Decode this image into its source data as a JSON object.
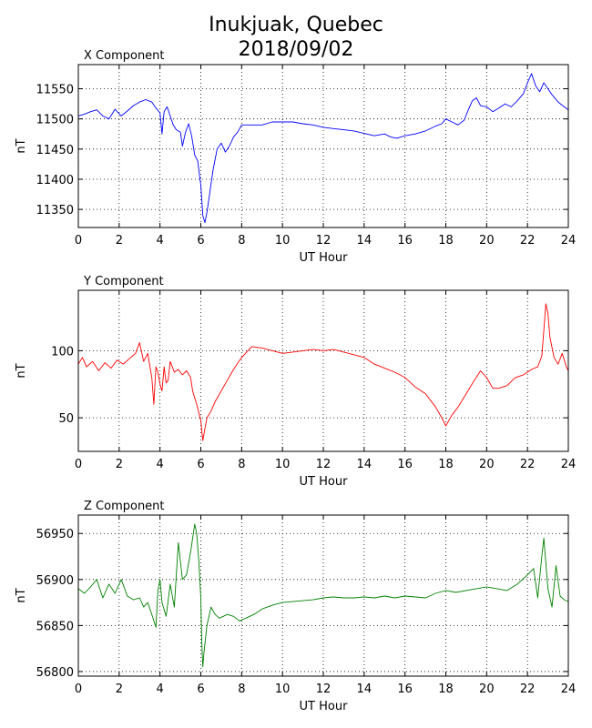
{
  "figure": {
    "title_line1": "Inukjuak, Quebec",
    "title_line2": "2018/09/02"
  },
  "chart_data": [
    {
      "type": "line",
      "title": "X Component",
      "xlabel": "UT Hour",
      "ylabel": "nT",
      "xlim": [
        0,
        24
      ],
      "ylim": [
        11320,
        11590
      ],
      "xticks": [
        0,
        2,
        4,
        6,
        8,
        10,
        12,
        14,
        16,
        18,
        20,
        22,
        24
      ],
      "yticks": [
        11350,
        11400,
        11450,
        11500,
        11550
      ],
      "grid": true,
      "color": "#0000ff",
      "series": [
        {
          "x": [
            0,
            0.3,
            0.6,
            0.9,
            1.2,
            1.5,
            1.8,
            2.1,
            2.4,
            2.7,
            3.0,
            3.3,
            3.6,
            3.8,
            4.0,
            4.1,
            4.2,
            4.35,
            4.5,
            4.65,
            4.8,
            5.0,
            5.1,
            5.25,
            5.4,
            5.55,
            5.7,
            5.85,
            6.0,
            6.1,
            6.2,
            6.3,
            6.45,
            6.6,
            6.8,
            7.0,
            7.2,
            7.4,
            7.6,
            7.8,
            8.0,
            8.5,
            9.0,
            9.5,
            10.0,
            10.5,
            11.0,
            11.5,
            12.0,
            12.5,
            13.0,
            13.5,
            14.0,
            14.5,
            15.0,
            15.3,
            15.6,
            16.0,
            16.5,
            17.0,
            17.5,
            17.8,
            18.0,
            18.3,
            18.6,
            18.9,
            19.1,
            19.3,
            19.5,
            19.7,
            20.0,
            20.3,
            20.6,
            20.9,
            21.2,
            21.5,
            21.8,
            22.0,
            22.2,
            22.4,
            22.6,
            22.8,
            23.0,
            23.2,
            23.5,
            23.8,
            24.0
          ],
          "y": [
            11505,
            11508,
            11512,
            11515,
            11505,
            11500,
            11516,
            11505,
            11513,
            11522,
            11528,
            11532,
            11528,
            11518,
            11510,
            11475,
            11512,
            11520,
            11505,
            11490,
            11482,
            11478,
            11455,
            11478,
            11492,
            11472,
            11440,
            11430,
            11390,
            11340,
            11328,
            11345,
            11380,
            11415,
            11450,
            11460,
            11445,
            11455,
            11470,
            11478,
            11490,
            11490,
            11490,
            11495,
            11495,
            11495,
            11492,
            11490,
            11486,
            11484,
            11482,
            11480,
            11476,
            11472,
            11475,
            11470,
            11468,
            11472,
            11475,
            11480,
            11488,
            11492,
            11500,
            11495,
            11490,
            11498,
            11515,
            11530,
            11535,
            11522,
            11520,
            11512,
            11518,
            11525,
            11520,
            11530,
            11542,
            11560,
            11575,
            11555,
            11545,
            11560,
            11550,
            11540,
            11528,
            11520,
            11515
          ]
        }
      ]
    },
    {
      "type": "line",
      "title": "Y Component",
      "xlabel": "UT Hour",
      "ylabel": "nT",
      "xlim": [
        0,
        24
      ],
      "ylim": [
        25,
        145
      ],
      "xticks": [
        0,
        2,
        4,
        6,
        8,
        10,
        12,
        14,
        16,
        18,
        20,
        22,
        24
      ],
      "yticks": [
        50,
        100
      ],
      "grid": true,
      "color": "#ff0000",
      "series": [
        {
          "x": [
            0,
            0.2,
            0.4,
            0.7,
            1.0,
            1.3,
            1.6,
            1.9,
            2.2,
            2.5,
            2.8,
            3.0,
            3.2,
            3.4,
            3.6,
            3.7,
            3.8,
            3.9,
            4.0,
            4.1,
            4.2,
            4.3,
            4.4,
            4.5,
            4.7,
            4.9,
            5.1,
            5.3,
            5.5,
            5.6,
            5.8,
            6.0,
            6.05,
            6.1,
            6.2,
            6.3,
            6.5,
            6.7,
            7.0,
            7.3,
            7.6,
            8.0,
            8.5,
            9.0,
            9.5,
            10.0,
            10.5,
            11.0,
            11.5,
            12.0,
            12.5,
            13.0,
            13.5,
            14.0,
            14.5,
            15.0,
            15.5,
            16.0,
            16.5,
            17.0,
            17.5,
            17.8,
            18.0,
            18.3,
            18.6,
            19.0,
            19.4,
            19.7,
            20.0,
            20.3,
            20.6,
            21.0,
            21.4,
            21.8,
            22.2,
            22.5,
            22.7,
            22.8,
            22.9,
            23.0,
            23.1,
            23.3,
            23.5,
            23.7,
            23.9,
            24.0
          ],
          "y": [
            90,
            95,
            88,
            92,
            85,
            91,
            87,
            93,
            90,
            94,
            98,
            106,
            92,
            98,
            80,
            60,
            88,
            84,
            75,
            70,
            88,
            76,
            78,
            92,
            84,
            86,
            82,
            85,
            80,
            70,
            60,
            48,
            40,
            33,
            42,
            50,
            55,
            62,
            70,
            78,
            86,
            95,
            103,
            102,
            100,
            98,
            99,
            100,
            101,
            100,
            101,
            99,
            97,
            95,
            90,
            87,
            84,
            80,
            73,
            68,
            58,
            50,
            44,
            52,
            58,
            68,
            78,
            85,
            80,
            72,
            72,
            74,
            80,
            82,
            86,
            88,
            96,
            115,
            135,
            128,
            110,
            95,
            90,
            98,
            88,
            85
          ]
        }
      ]
    },
    {
      "type": "line",
      "title": "Z Component",
      "xlabel": "UT Hour",
      "ylabel": "nT",
      "xlim": [
        0,
        24
      ],
      "ylim": [
        56795,
        56970
      ],
      "xticks": [
        0,
        2,
        4,
        6,
        8,
        10,
        12,
        14,
        16,
        18,
        20,
        22,
        24
      ],
      "yticks": [
        56800,
        56850,
        56900,
        56950
      ],
      "grid": true,
      "color": "#008000",
      "series": [
        {
          "x": [
            0,
            0.3,
            0.6,
            0.9,
            1.2,
            1.5,
            1.8,
            2.1,
            2.4,
            2.7,
            3.0,
            3.2,
            3.4,
            3.6,
            3.8,
            3.9,
            4.0,
            4.1,
            4.3,
            4.5,
            4.7,
            4.8,
            4.9,
            5.0,
            5.1,
            5.3,
            5.5,
            5.7,
            5.8,
            5.9,
            6.0,
            6.05,
            6.1,
            6.15,
            6.2,
            6.3,
            6.5,
            6.7,
            6.9,
            7.1,
            7.3,
            7.6,
            7.9,
            8.2,
            8.6,
            9.0,
            9.5,
            10.0,
            10.5,
            11.0,
            11.5,
            12.0,
            12.5,
            13.0,
            13.5,
            14.0,
            14.5,
            15.0,
            15.5,
            16.0,
            16.5,
            17.0,
            17.5,
            18.0,
            18.5,
            19.0,
            19.5,
            20.0,
            20.5,
            21.0,
            21.5,
            22.0,
            22.3,
            22.5,
            22.7,
            22.8,
            23.0,
            23.2,
            23.4,
            23.6,
            23.8,
            24.0
          ],
          "y": [
            56890,
            56885,
            56892,
            56900,
            56880,
            56895,
            56885,
            56900,
            56882,
            56878,
            56880,
            56870,
            56875,
            56862,
            56848,
            56888,
            56900,
            56875,
            56860,
            56895,
            56870,
            56905,
            56940,
            56920,
            56900,
            56905,
            56930,
            56960,
            56950,
            56920,
            56880,
            56830,
            56805,
            56820,
            56830,
            56850,
            56870,
            56862,
            56858,
            56860,
            56862,
            56860,
            56855,
            56858,
            56862,
            56868,
            56872,
            56875,
            56876,
            56877,
            56878,
            56880,
            56881,
            56880,
            56880,
            56881,
            56880,
            56882,
            56880,
            56882,
            56881,
            56880,
            56885,
            56888,
            56886,
            56888,
            56890,
            56892,
            56890,
            56888,
            56895,
            56905,
            56912,
            56880,
            56925,
            56945,
            56890,
            56870,
            56915,
            56882,
            56878,
            56876
          ]
        }
      ]
    }
  ]
}
